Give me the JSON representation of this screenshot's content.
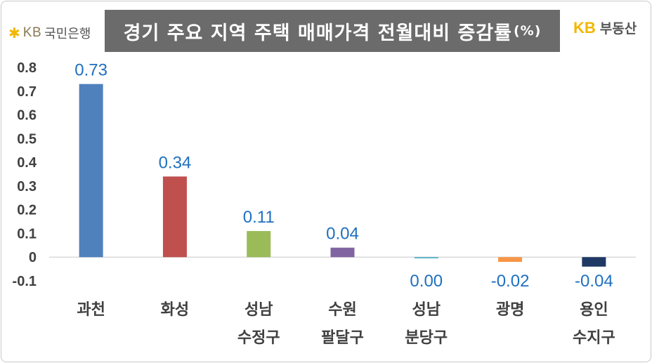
{
  "header": {
    "left_logo_mark": "KB",
    "left_logo_bank": "국민은행",
    "title": "경기 주요 지역 주택 매매가격 전월대비 증감률",
    "title_unit": "(%)",
    "right_logo_mark": "KB",
    "right_logo_name": "부동산"
  },
  "colors": {
    "title_bg": "#6b6b6b",
    "data_label": "#1f70c1",
    "brand_yellow": "#f2b700"
  },
  "chart_data": {
    "type": "bar",
    "title": "경기 주요 지역 주택 매매가격 전월대비 증감률(%)",
    "categories": [
      [
        "과천"
      ],
      [
        "화성"
      ],
      [
        "성남",
        "수정구"
      ],
      [
        "수원",
        "팔달구"
      ],
      [
        "성남",
        "분당구"
      ],
      [
        "광명"
      ],
      [
        "용인",
        "수지구"
      ]
    ],
    "values": [
      0.73,
      0.34,
      0.11,
      0.04,
      -0.005,
      -0.02,
      -0.04
    ],
    "value_labels": [
      "0.73",
      "0.34",
      "0.11",
      "0.04",
      "0.00",
      "-0.02",
      "-0.04"
    ],
    "bar_colors": [
      "#4f81bd",
      "#c0504d",
      "#9bbb59",
      "#8064a2",
      "#4bacc6",
      "#f79646",
      "#1f3864"
    ],
    "ylim": [
      -0.1,
      0.8
    ],
    "yticks": [
      0.8,
      0.7,
      0.6,
      0.5,
      0.4,
      0.3,
      0.2,
      0.1,
      0,
      -0.1
    ],
    "ytick_labels": [
      "0.8",
      "0.7",
      "0.6",
      "0.5",
      "0.4",
      "0.3",
      "0.2",
      "0.1",
      "0",
      "-0.1"
    ],
    "xlabel": "",
    "ylabel": "",
    "grid": false,
    "legend": "none"
  }
}
